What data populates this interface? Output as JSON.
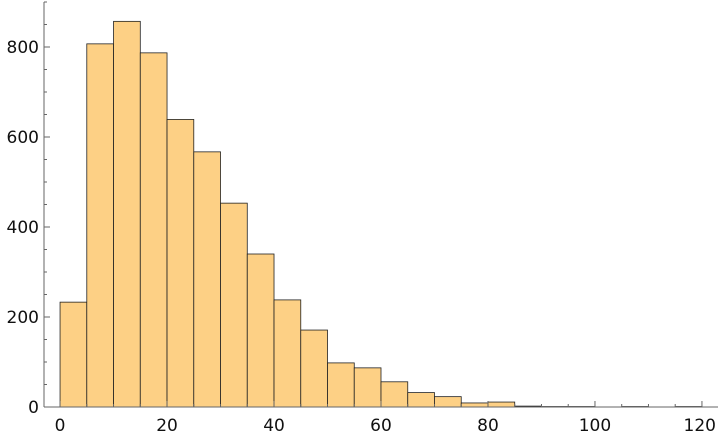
{
  "chart_data": {
    "type": "bar",
    "title": "",
    "xlabel": "",
    "ylabel": "",
    "xlim": [
      -3,
      123
    ],
    "ylim": [
      0,
      900
    ],
    "bin_width": 5,
    "bins": [
      {
        "start": 0,
        "end": 5,
        "value": 233
      },
      {
        "start": 5,
        "end": 10,
        "value": 807
      },
      {
        "start": 10,
        "end": 15,
        "value": 857
      },
      {
        "start": 15,
        "end": 20,
        "value": 787
      },
      {
        "start": 20,
        "end": 25,
        "value": 639
      },
      {
        "start": 25,
        "end": 30,
        "value": 567
      },
      {
        "start": 30,
        "end": 35,
        "value": 453
      },
      {
        "start": 35,
        "end": 40,
        "value": 340
      },
      {
        "start": 40,
        "end": 45,
        "value": 238
      },
      {
        "start": 45,
        "end": 50,
        "value": 171
      },
      {
        "start": 50,
        "end": 55,
        "value": 98
      },
      {
        "start": 55,
        "end": 60,
        "value": 87
      },
      {
        "start": 60,
        "end": 65,
        "value": 56
      },
      {
        "start": 65,
        "end": 70,
        "value": 32
      },
      {
        "start": 70,
        "end": 75,
        "value": 23
      },
      {
        "start": 75,
        "end": 80,
        "value": 9
      },
      {
        "start": 80,
        "end": 85,
        "value": 11
      },
      {
        "start": 85,
        "end": 90,
        "value": 2
      },
      {
        "start": 90,
        "end": 95,
        "value": 1
      },
      {
        "start": 95,
        "end": 100,
        "value": 1
      },
      {
        "start": 105,
        "end": 110,
        "value": 1
      },
      {
        "start": 115,
        "end": 120,
        "value": 1
      }
    ],
    "x_ticks": [
      "0",
      "20",
      "40",
      "60",
      "80",
      "100",
      "120"
    ],
    "y_ticks": [
      "0",
      "200",
      "400",
      "600",
      "800"
    ],
    "grid": false,
    "legend": "none",
    "colors": {
      "bar_fill": "#fdd085",
      "bar_edge": "#222222"
    }
  }
}
